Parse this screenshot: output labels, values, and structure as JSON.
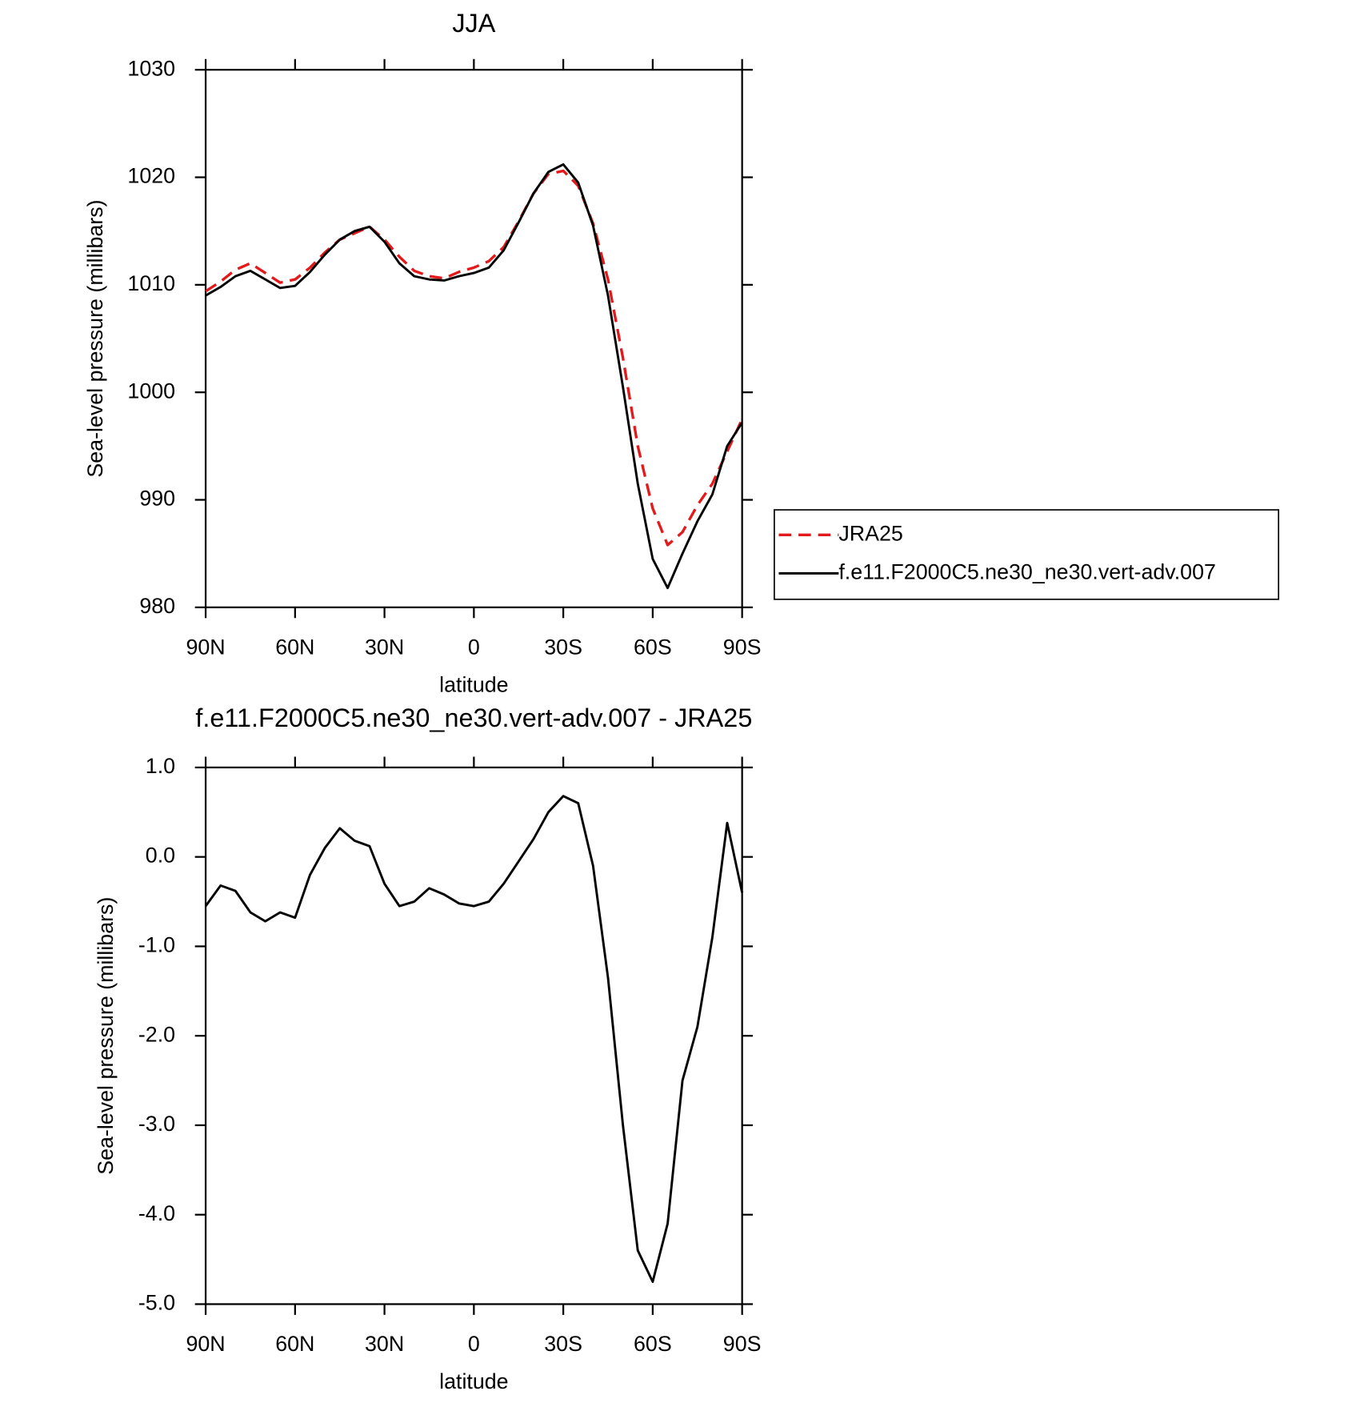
{
  "chart_data": [
    {
      "type": "line",
      "title": "JJA",
      "xlabel": "latitude",
      "ylabel": "Sea-level pressure (millibars)",
      "x": [
        90,
        85,
        80,
        75,
        70,
        65,
        60,
        55,
        50,
        45,
        40,
        35,
        30,
        25,
        20,
        15,
        10,
        5,
        0,
        -5,
        -10,
        -15,
        -20,
        -25,
        -30,
        -35,
        -40,
        -45,
        -50,
        -55,
        -60,
        -65,
        -70,
        -75,
        -80,
        -85,
        -90
      ],
      "series": [
        {
          "name": "JRA25",
          "color": "#e31a1c",
          "dash": true,
          "values": [
            1009.4,
            1010.3,
            1011.4,
            1012.0,
            1011.1,
            1010.2,
            1010.5,
            1011.6,
            1013.0,
            1014.2,
            1014.8,
            1015.4,
            1014.2,
            1012.6,
            1011.3,
            1010.8,
            1010.6,
            1011.2,
            1011.6,
            1012.2,
            1013.5,
            1015.9,
            1018.5,
            1020.3,
            1020.6,
            1019.2,
            1015.7,
            1010.5,
            1003.2,
            995.0,
            989.2,
            985.8,
            987.0,
            989.5,
            991.5,
            994.5,
            997.5
          ]
        },
        {
          "name": "f.e11.F2000C5.ne30_ne30.vert-adv.007",
          "color": "#000000",
          "dash": false,
          "values": [
            1009.0,
            1009.8,
            1010.8,
            1011.3,
            1010.5,
            1009.7,
            1009.9,
            1011.2,
            1012.8,
            1014.2,
            1015.0,
            1015.4,
            1014.0,
            1012.0,
            1010.8,
            1010.5,
            1010.4,
            1010.8,
            1011.1,
            1011.6,
            1013.2,
            1015.8,
            1018.5,
            1020.5,
            1021.2,
            1019.5,
            1015.5,
            1009.0,
            1000.5,
            991.5,
            984.5,
            981.8,
            985.0,
            988.0,
            990.5,
            995.0,
            997.2
          ]
        }
      ],
      "xlim": [
        90,
        -90
      ],
      "xticks": [
        {
          "value": 90,
          "label": "90N"
        },
        {
          "value": 60,
          "label": "60N"
        },
        {
          "value": 30,
          "label": "30N"
        },
        0,
        {
          "value": -30,
          "label": "30S"
        },
        {
          "value": -60,
          "label": "60S"
        },
        {
          "value": -90,
          "label": "90S"
        }
      ],
      "ylim": [
        980,
        1030
      ],
      "yticks": [
        980,
        990,
        1000,
        1010,
        1020,
        1030
      ],
      "legend": "right"
    },
    {
      "type": "line",
      "title": "f.e11.F2000C5.ne30_ne30.vert-adv.007 - JRA25",
      "xlabel": "latitude",
      "ylabel": "Sea-level pressure (millibars)",
      "x": [
        90,
        85,
        80,
        75,
        70,
        65,
        60,
        55,
        50,
        45,
        40,
        35,
        30,
        25,
        20,
        15,
        10,
        5,
        0,
        -5,
        -10,
        -15,
        -20,
        -25,
        -30,
        -35,
        -40,
        -45,
        -50,
        -55,
        -60,
        -65,
        -70,
        -75,
        -80,
        -85,
        -90
      ],
      "series": [
        {
          "color": "#000000",
          "dash": false,
          "values": [
            -0.55,
            -0.32,
            -0.38,
            -0.62,
            -0.72,
            -0.62,
            -0.68,
            -0.2,
            0.1,
            0.32,
            0.18,
            0.12,
            -0.3,
            -0.55,
            -0.5,
            -0.35,
            -0.42,
            -0.52,
            -0.55,
            -0.5,
            -0.3,
            -0.05,
            0.2,
            0.5,
            0.68,
            0.6,
            -0.1,
            -1.35,
            -3.0,
            -4.4,
            -4.75,
            -4.1,
            -2.5,
            -1.9,
            -0.9,
            0.38,
            -0.4
          ]
        }
      ],
      "xlim": [
        90,
        -90
      ],
      "xticks": [
        {
          "value": 90,
          "label": "90N"
        },
        {
          "value": 60,
          "label": "60N"
        },
        {
          "value": 30,
          "label": "30N"
        },
        0,
        {
          "value": -30,
          "label": "30S"
        },
        {
          "value": -60,
          "label": "60S"
        },
        {
          "value": -90,
          "label": "90S"
        }
      ],
      "ylim": [
        -5,
        1
      ],
      "yticks": [
        {
          "value": -5,
          "label": "-5.0"
        },
        {
          "value": -4,
          "label": "-4.0"
        },
        {
          "value": -3,
          "label": "-3.0"
        },
        {
          "value": -2,
          "label": "-2.0"
        },
        {
          "value": -1,
          "label": "-1.0"
        },
        {
          "value": 0,
          "label": "0.0"
        },
        {
          "value": 1,
          "label": "1.0"
        }
      ]
    }
  ]
}
